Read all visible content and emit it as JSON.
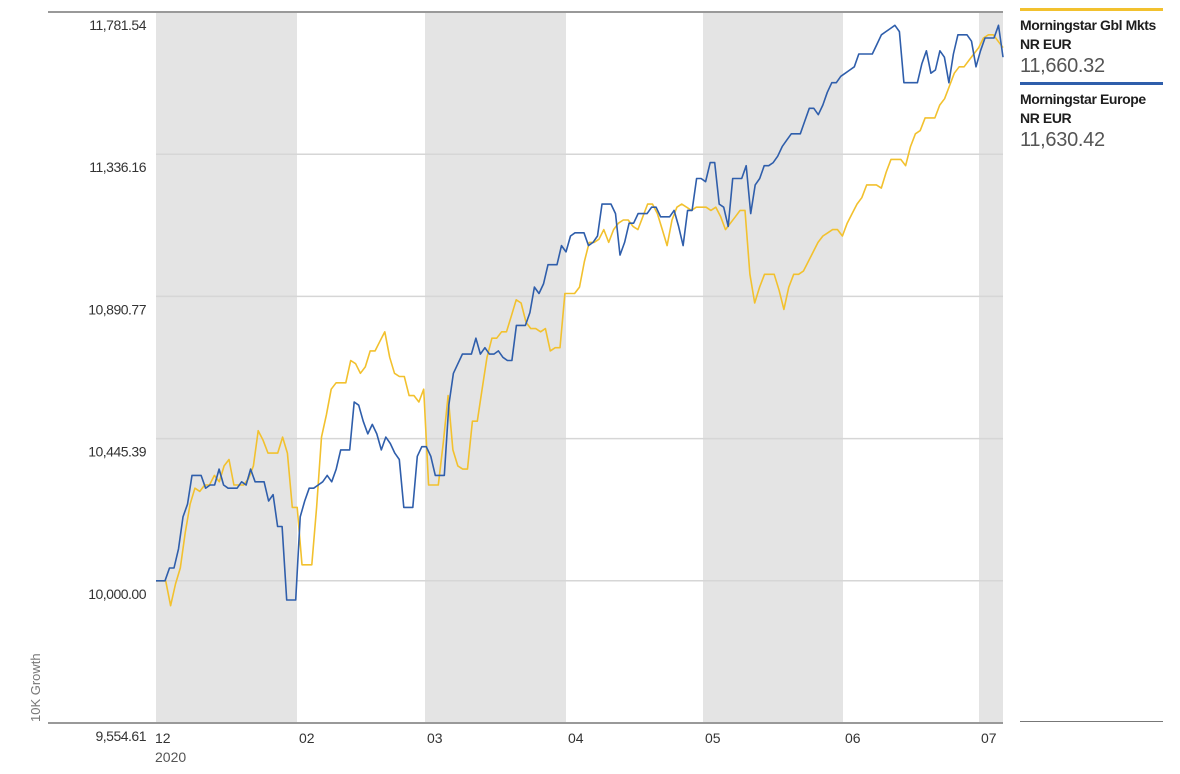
{
  "chart_data": {
    "type": "line",
    "ylabel": "10K Growth",
    "ylim": [
      9554.61,
      11781.54
    ],
    "y_ticks": [
      "9,554.61",
      "10,000.00",
      "10,445.39",
      "10,890.77",
      "11,336.16",
      "11,781.54"
    ],
    "x_ticks": [
      {
        "label": "12",
        "sublabel": "2020"
      },
      {
        "label": "02",
        "sublabel": ""
      },
      {
        "label": "03",
        "sublabel": ""
      },
      {
        "label": "04",
        "sublabel": ""
      },
      {
        "label": "05",
        "sublabel": ""
      },
      {
        "label": "06",
        "sublabel": ""
      },
      {
        "label": "07",
        "sublabel": ""
      }
    ],
    "series": [
      {
        "name": "Morningstar Gbl Mkts NR EUR",
        "color": "#f2c12e",
        "last_value": "11,660.32",
        "values": [
          10000,
          10000,
          10000,
          9922,
          9990,
          10040,
          10150,
          10240,
          10290,
          10280,
          10300,
          10300,
          10330,
          10310,
          10360,
          10380,
          10300,
          10300,
          10300,
          10320,
          10360,
          10470,
          10440,
          10400,
          10400,
          10400,
          10450,
          10400,
          10230,
          10230,
          10050,
          10050,
          10050,
          10230,
          10450,
          10520,
          10600,
          10620,
          10620,
          10620,
          10690,
          10680,
          10650,
          10670,
          10720,
          10720,
          10750,
          10780,
          10700,
          10650,
          10640,
          10640,
          10580,
          10580,
          10560,
          10600,
          10300,
          10300,
          10300,
          10430,
          10580,
          10410,
          10360,
          10350,
          10350,
          10500,
          10500,
          10600,
          10700,
          10760,
          10760,
          10780,
          10780,
          10830,
          10880,
          10870,
          10810,
          10790,
          10790,
          10780,
          10790,
          10720,
          10730,
          10730,
          10900,
          10900,
          10900,
          10920,
          11000,
          11060,
          11060,
          11070,
          11100,
          11060,
          11100,
          11120,
          11130,
          11130,
          11110,
          11100,
          11140,
          11180,
          11180,
          11150,
          11100,
          11050,
          11130,
          11170,
          11180,
          11170,
          11160,
          11170,
          11170,
          11170,
          11160,
          11170,
          11140,
          11100,
          11120,
          11140,
          11160,
          11160,
          10960,
          10870,
          10920,
          10960,
          10960,
          10960,
          10910,
          10850,
          10920,
          10960,
          10960,
          10970,
          11000,
          11030,
          11060,
          11080,
          11090,
          11100,
          11100,
          11080,
          11120,
          11150,
          11180,
          11200,
          11240,
          11240,
          11240,
          11230,
          11280,
          11320,
          11320,
          11320,
          11300,
          11360,
          11400,
          11410,
          11450,
          11450,
          11450,
          11490,
          11510,
          11550,
          11590,
          11610,
          11610,
          11630,
          11650,
          11670,
          11700,
          11710,
          11710,
          11690,
          11670
        ]
      },
      {
        "name": "Morningstar Europe NR EUR",
        "color": "#2f5eab",
        "last_value": "11,630.42",
        "values": [
          10000,
          10000,
          10000,
          10040,
          10040,
          10100,
          10200,
          10240,
          10330,
          10330,
          10330,
          10290,
          10300,
          10300,
          10350,
          10300,
          10290,
          10290,
          10290,
          10310,
          10300,
          10350,
          10310,
          10310,
          10310,
          10250,
          10270,
          10170,
          10170,
          9940,
          9940,
          9940,
          10200,
          10250,
          10290,
          10290,
          10300,
          10310,
          10330,
          10310,
          10350,
          10410,
          10410,
          10410,
          10560,
          10550,
          10500,
          10460,
          10490,
          10460,
          10410,
          10450,
          10430,
          10400,
          10380,
          10230,
          10230,
          10230,
          10390,
          10420,
          10420,
          10390,
          10330,
          10330,
          10330,
          10550,
          10650,
          10680,
          10710,
          10710,
          10710,
          10760,
          10710,
          10730,
          10710,
          10710,
          10720,
          10700,
          10690,
          10690,
          10800,
          10800,
          10800,
          10840,
          10920,
          10900,
          10930,
          10990,
          10990,
          10990,
          11050,
          11030,
          11080,
          11090,
          11090,
          11090,
          11050,
          11060,
          11080,
          11180,
          11180,
          11180,
          11150,
          11020,
          11060,
          11120,
          11120,
          11150,
          11150,
          11150,
          11170,
          11170,
          11140,
          11140,
          11140,
          11160,
          11110,
          11050,
          11160,
          11160,
          11260,
          11260,
          11250,
          11310,
          11310,
          11180,
          11170,
          11110,
          11260,
          11260,
          11260,
          11300,
          11150,
          11240,
          11260,
          11300,
          11300,
          11310,
          11330,
          11360,
          11380,
          11400,
          11400,
          11400,
          11440,
          11480,
          11480,
          11460,
          11490,
          11530,
          11560,
          11560,
          11580,
          11590,
          11600,
          11610,
          11650,
          11650,
          11650,
          11650,
          11680,
          11710,
          11720,
          11730,
          11740,
          11720,
          11560,
          11560,
          11560,
          11560,
          11620,
          11660,
          11590,
          11600,
          11660,
          11640,
          11560,
          11650,
          11710,
          11710,
          11710,
          11690,
          11610,
          11660,
          11700,
          11700,
          11700,
          11740,
          11640
        ]
      }
    ]
  }
}
